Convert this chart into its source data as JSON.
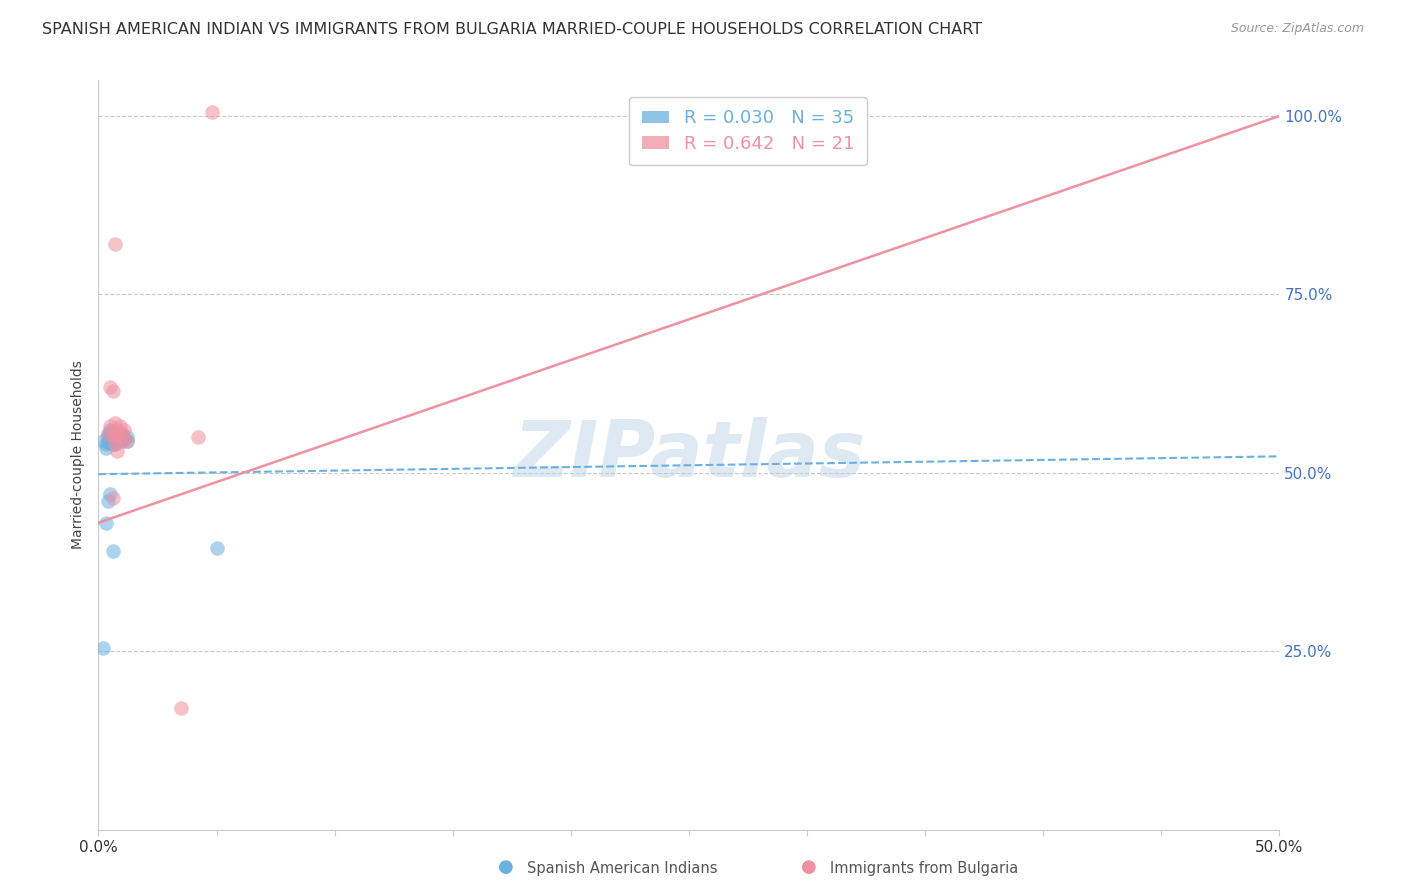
{
  "title": "SPANISH AMERICAN INDIAN VS IMMIGRANTS FROM BULGARIA MARRIED-COUPLE HOUSEHOLDS CORRELATION CHART",
  "source": "Source: ZipAtlas.com",
  "ylabel": "Married-couple Households",
  "xlim": [
    0,
    0.5
  ],
  "ylim": [
    0,
    1.05
  ],
  "ytick_labels_right": [
    "25.0%",
    "50.0%",
    "75.0%",
    "100.0%"
  ],
  "ytick_values_right": [
    0.25,
    0.5,
    0.75,
    1.0
  ],
  "legend_label1": "R = 0.030   N = 35",
  "legend_label2": "R = 0.642   N = 21",
  "legend_color1": "#6ab0e0",
  "legend_color2": "#f090a0",
  "footer_label1": "Spanish American Indians",
  "footer_label2": "Immigrants from Bulgaria",
  "blue_scatter_x": [
    0.002,
    0.003,
    0.003,
    0.004,
    0.004,
    0.004,
    0.005,
    0.005,
    0.005,
    0.005,
    0.006,
    0.006,
    0.006,
    0.006,
    0.007,
    0.007,
    0.007,
    0.007,
    0.008,
    0.008,
    0.008,
    0.009,
    0.009,
    0.01,
    0.01,
    0.01,
    0.011,
    0.012,
    0.012,
    0.003,
    0.004,
    0.005,
    0.006,
    0.05,
    0.002
  ],
  "blue_scatter_y": [
    0.545,
    0.535,
    0.54,
    0.555,
    0.55,
    0.545,
    0.56,
    0.555,
    0.548,
    0.542,
    0.558,
    0.55,
    0.545,
    0.54,
    0.555,
    0.55,
    0.545,
    0.54,
    0.555,
    0.55,
    0.545,
    0.552,
    0.548,
    0.555,
    0.55,
    0.545,
    0.548,
    0.55,
    0.545,
    0.43,
    0.46,
    0.47,
    0.39,
    0.395,
    0.255
  ],
  "pink_scatter_x": [
    0.004,
    0.005,
    0.006,
    0.007,
    0.007,
    0.008,
    0.008,
    0.009,
    0.01,
    0.01,
    0.011,
    0.012,
    0.005,
    0.006,
    0.007,
    0.008,
    0.006,
    0.007,
    0.035,
    0.042,
    0.048
  ],
  "pink_scatter_y": [
    0.555,
    0.565,
    0.555,
    0.57,
    0.55,
    0.56,
    0.555,
    0.565,
    0.545,
    0.555,
    0.56,
    0.545,
    0.62,
    0.615,
    0.54,
    0.53,
    0.465,
    0.82,
    0.17,
    0.55,
    1.005
  ],
  "blue_line_x": [
    0.0,
    0.5
  ],
  "blue_line_y": [
    0.498,
    0.523
  ],
  "pink_line_x": [
    0.0,
    0.5
  ],
  "pink_line_y": [
    0.43,
    1.0
  ],
  "watermark": "ZIPatlas",
  "background_color": "#ffffff",
  "scatter_alpha": 0.55,
  "scatter_size": 110,
  "grid_color": "#c8c8c8",
  "title_fontsize": 11.5,
  "axis_label_fontsize": 10,
  "tick_fontsize": 10,
  "right_tick_color": "#4472c4"
}
